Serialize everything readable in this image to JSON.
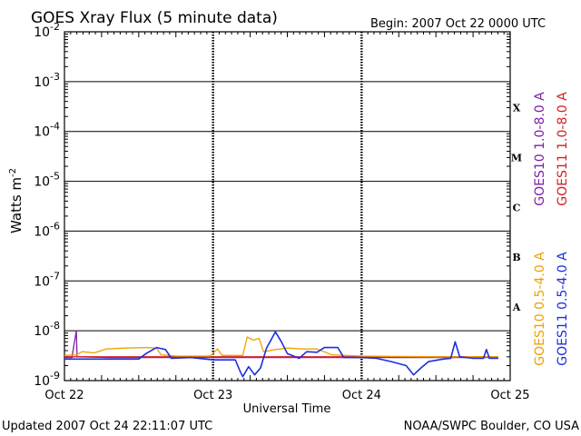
{
  "chart_data": {
    "type": "line",
    "title": "GOES Xray Flux (5 minute data)",
    "begin_label": "Begin:  2007 Oct 22 0000 UTC",
    "xlabel": "Universal Time",
    "ylabel": "Watts m",
    "ylabel_sup": "-2",
    "y_scale": "log",
    "ylim": [
      1e-09,
      0.01
    ],
    "xlim_days": [
      0,
      3
    ],
    "x_ticks": [
      {
        "day": 0,
        "label": "Oct 22"
      },
      {
        "day": 1,
        "label": "Oct 23"
      },
      {
        "day": 2,
        "label": "Oct 24"
      },
      {
        "day": 3,
        "label": "Oct 25"
      }
    ],
    "y_ticks": [
      {
        "base": "10",
        "exp": "-9",
        "value": 1e-09
      },
      {
        "base": "10",
        "exp": "-8",
        "value": 1e-08
      },
      {
        "base": "10",
        "exp": "-7",
        "value": 1e-07
      },
      {
        "base": "10",
        "exp": "-6",
        "value": 1e-06
      },
      {
        "base": "10",
        "exp": "-5",
        "value": 1e-05
      },
      {
        "base": "10",
        "exp": "-4",
        "value": 0.0001
      },
      {
        "base": "10",
        "exp": "-3",
        "value": 0.001
      },
      {
        "base": "10",
        "exp": "-2",
        "value": 0.01
      }
    ],
    "flare_classes": [
      {
        "label": "X",
        "value": 0.0003
      },
      {
        "label": "M",
        "value": 3e-05
      },
      {
        "label": "C",
        "value": 3e-06
      },
      {
        "label": "B",
        "value": 3e-07
      },
      {
        "label": "A",
        "value": 3e-08
      }
    ],
    "grid": "horizontal lines at each decade, dashed vertical lines at day boundaries",
    "legend_placement": "right, vertical",
    "series": [
      {
        "name": "GOES10 1.0-8.0 A",
        "color": "#7f1fa8",
        "points": [
          [
            0,
            2.9e-09
          ],
          [
            0.05,
            2.9e-09
          ],
          [
            0.08,
            1e-08
          ],
          [
            0.085,
            3e-09
          ],
          [
            0.3,
            2.9e-09
          ],
          [
            0.6,
            2.9e-09
          ],
          [
            1.0,
            2.9e-09
          ],
          [
            1.5,
            2.9e-09
          ],
          [
            2.0,
            2.9e-09
          ],
          [
            2.5,
            2.9e-09
          ],
          [
            2.92,
            2.9e-09
          ]
        ]
      },
      {
        "name": "GOES11 1.0-8.0 A",
        "color": "#d42020",
        "points": [
          [
            0,
            3e-09
          ],
          [
            0.5,
            3e-09
          ],
          [
            1.0,
            3e-09
          ],
          [
            1.5,
            3e-09
          ],
          [
            2.0,
            3e-09
          ],
          [
            2.5,
            3e-09
          ],
          [
            2.92,
            3e-09
          ]
        ]
      },
      {
        "name": "GOES10 0.5-4.0 A",
        "color": "#f0a000",
        "points": [
          [
            0,
            3.2e-09
          ],
          [
            0.08,
            3.3e-09
          ],
          [
            0.12,
            3.8e-09
          ],
          [
            0.2,
            3.6e-09
          ],
          [
            0.28,
            4.3e-09
          ],
          [
            0.4,
            4.5e-09
          ],
          [
            0.55,
            4.6e-09
          ],
          [
            0.62,
            4.5e-09
          ],
          [
            0.65,
            3.3e-09
          ],
          [
            0.75,
            3.1e-09
          ],
          [
            0.98,
            3.1e-09
          ],
          [
            1.03,
            4.3e-09
          ],
          [
            1.06,
            3.2e-09
          ],
          [
            1.2,
            3.2e-09
          ],
          [
            1.23,
            7.5e-09
          ],
          [
            1.27,
            6.5e-09
          ],
          [
            1.31,
            7e-09
          ],
          [
            1.34,
            3.8e-09
          ],
          [
            1.42,
            4.2e-09
          ],
          [
            1.5,
            4.5e-09
          ],
          [
            1.6,
            4.3e-09
          ],
          [
            1.7,
            4.3e-09
          ],
          [
            1.8,
            3.3e-09
          ],
          [
            2.0,
            3.1e-09
          ],
          [
            2.5,
            3e-09
          ],
          [
            2.92,
            3e-09
          ]
        ]
      },
      {
        "name": "GOES11 0.5-4.0 A",
        "color": "#1a2fe0",
        "points": [
          [
            0,
            2.7e-09
          ],
          [
            0.2,
            2.7e-09
          ],
          [
            0.5,
            2.7e-09
          ],
          [
            0.55,
            3.5e-09
          ],
          [
            0.62,
            4.6e-09
          ],
          [
            0.68,
            4.2e-09
          ],
          [
            0.72,
            2.8e-09
          ],
          [
            0.85,
            2.9e-09
          ],
          [
            1.0,
            2.6e-09
          ],
          [
            1.15,
            2.6e-09
          ],
          [
            1.18,
            1.6e-09
          ],
          [
            1.2,
            1.2e-09
          ],
          [
            1.24,
            1.9e-09
          ],
          [
            1.28,
            1.3e-09
          ],
          [
            1.32,
            1.8e-09
          ],
          [
            1.36,
            4.5e-09
          ],
          [
            1.42,
            9.5e-09
          ],
          [
            1.46,
            6e-09
          ],
          [
            1.5,
            3.5e-09
          ],
          [
            1.58,
            2.8e-09
          ],
          [
            1.63,
            3.8e-09
          ],
          [
            1.7,
            3.7e-09
          ],
          [
            1.75,
            4.6e-09
          ],
          [
            1.84,
            4.6e-09
          ],
          [
            1.88,
            2.9e-09
          ],
          [
            2.0,
            2.9e-09
          ],
          [
            2.1,
            2.8e-09
          ],
          [
            2.2,
            2.4e-09
          ],
          [
            2.3,
            2e-09
          ],
          [
            2.35,
            1.3e-09
          ],
          [
            2.4,
            1.8e-09
          ],
          [
            2.45,
            2.4e-09
          ],
          [
            2.55,
            2.7e-09
          ],
          [
            2.6,
            2.8e-09
          ],
          [
            2.63,
            6e-09
          ],
          [
            2.66,
            3e-09
          ],
          [
            2.75,
            2.8e-09
          ],
          [
            2.82,
            2.8e-09
          ],
          [
            2.84,
            4.2e-09
          ],
          [
            2.86,
            2.8e-09
          ],
          [
            2.92,
            2.8e-09
          ]
        ]
      }
    ]
  },
  "footer": {
    "updated": "Updated 2007 Oct 24 22:11:07 UTC",
    "source": "NOAA/SWPC Boulder, CO USA"
  }
}
